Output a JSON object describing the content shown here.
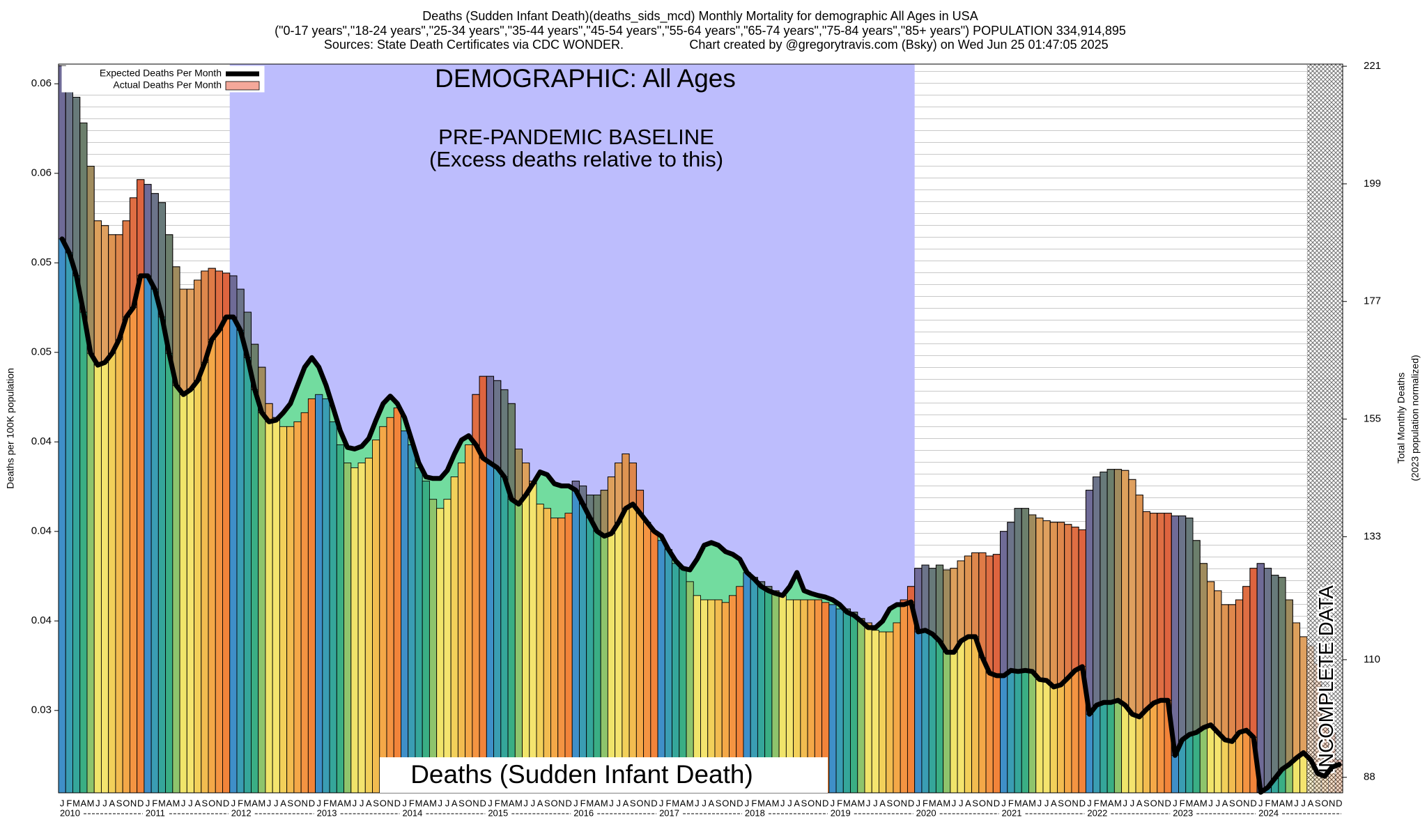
{
  "chart_data": {
    "type": "bar",
    "title": "Deaths (Sudden Infant Death)(deaths_sids_mcd) Monthly Mortality for demographic All Ages in USA",
    "subtitle": "(\"0-17 years\",\"18-24 years\",\"25-34 years\",\"35-44 years\",\"45-54 years\",\"55-64 years\",\"65-74 years\",\"75-84 years\",\"85+ years\") POPULATION 334,914,895",
    "source": "Sources: State Death Certificates via CDC WONDER.",
    "credit": "Chart created by @gregorytravis.com (Bsky) on Wed Jun 25 01:47:05 2025",
    "demographic_label": "DEMOGRAPHIC: All Ages",
    "baseline_label": "PRE-PANDEMIC BASELINE",
    "baseline_note": "(Excess deaths relative to this)",
    "cause_label": "Deaths (Sudden Infant Death)",
    "incomplete_label": "INCOMPLETE DATA",
    "ylabel": "Deaths per 100K population",
    "y2label": "Total Monthly Deaths",
    "y2label_note": "(2023 population normalized)",
    "years": [
      2010,
      2011,
      2012,
      2013,
      2014,
      2015,
      2016,
      2017,
      2018,
      2019,
      2020,
      2021,
      2022,
      2023,
      2024
    ],
    "months": [
      "J",
      "F",
      "M",
      "A",
      "M",
      "J",
      "J",
      "A",
      "S",
      "O",
      "N",
      "D"
    ],
    "month_colors": [
      "#3f8fc8",
      "#3a9db3",
      "#35a69a",
      "#3aae84",
      "#8ec46c",
      "#f0e46a",
      "#f4e46e",
      "#f2d05a",
      "#f2bc50",
      "#f4a848",
      "#f49442",
      "#f2843a"
    ],
    "baseline_years": [
      2012,
      2019
    ],
    "baseline_color": "#bdbdfd",
    "excess_color": "rgba(190,50,70,0.38)",
    "deficit_color": "#72dc9f",
    "incomplete_from": "2024-08",
    "ylim": [
      0.0254,
      0.0661
    ],
    "yticks": [
      {
        "value": 0.065,
        "label": "0.06"
      },
      {
        "value": 0.06,
        "label": "0.06"
      },
      {
        "value": 0.055,
        "label": "0.05"
      },
      0.05,
      {
        "value": 0.045,
        "label": "0.04"
      },
      0.04,
      {
        "value": 0.035,
        "label": "0.04"
      },
      0.03
    ],
    "y2lim": [
      85.1,
      221.4
    ],
    "y2ticks": [
      88,
      110,
      133,
      155,
      177,
      199,
      221
    ],
    "legend": "upper left",
    "series": [
      {
        "name": "Expected Deaths Per Month",
        "color": "#000000",
        "axis": "y2",
        "values": [
          188.7,
          186.1,
          181.8,
          175.0,
          167.3,
          165.1,
          165.6,
          167.3,
          169.9,
          174.1,
          175.9,
          181.8,
          181.8,
          179.3,
          174.1,
          167.3,
          161.3,
          159.6,
          160.5,
          162.2,
          165.6,
          169.9,
          171.6,
          174.1,
          174.1,
          171.6,
          166.5,
          160.5,
          156.2,
          154.5,
          154.8,
          156.2,
          157.9,
          161.3,
          164.7,
          166.5,
          164.7,
          161.3,
          157.1,
          152.8,
          149.7,
          149.4,
          149.9,
          151.4,
          154.8,
          157.9,
          159.3,
          157.9,
          155.3,
          151.1,
          146.8,
          144.2,
          143.9,
          143.9,
          145.4,
          148.5,
          151.1,
          151.9,
          150.2,
          147.7,
          146.8,
          145.9,
          144.2,
          140.0,
          139.1,
          140.8,
          142.9,
          145.1,
          144.6,
          142.9,
          142.5,
          142.5,
          141.7,
          139.1,
          136.5,
          134.0,
          133.1,
          133.6,
          135.7,
          138.3,
          139.1,
          137.4,
          135.7,
          134.0,
          133.1,
          130.6,
          128.5,
          127.1,
          126.8,
          128.8,
          131.4,
          131.9,
          131.4,
          130.2,
          129.7,
          128.8,
          126.3,
          125.1,
          123.7,
          122.9,
          122.4,
          122.0,
          123.7,
          126.3,
          122.9,
          122.4,
          122.0,
          121.7,
          121.2,
          120.3,
          118.9,
          118.3,
          117.2,
          116.0,
          116.0,
          117.2,
          119.5,
          120.3,
          120.3,
          120.8,
          115.2,
          115.5,
          114.8,
          113.5,
          111.4,
          111.4,
          113.5,
          114.3,
          114.3,
          110.4,
          107.5,
          107.0,
          107.0,
          108.0,
          107.8,
          108.0,
          107.8,
          106.3,
          106.1,
          104.9,
          105.3,
          106.6,
          108.0,
          108.7,
          99.8,
          101.5,
          102.0,
          102.0,
          102.4,
          101.5,
          99.8,
          99.3,
          100.7,
          101.9,
          102.4,
          102.4,
          92.1,
          95.0,
          96.0,
          96.4,
          97.3,
          97.8,
          96.4,
          95.0,
          94.7,
          96.4,
          96.8,
          95.5,
          85.2,
          86.1,
          87.8,
          89.5,
          90.4,
          91.6,
          92.6,
          91.3,
          88.7,
          88.2,
          89.9,
          90.4
        ]
      },
      {
        "name": "Actual Deaths Per Month",
        "color": "#f4a89a",
        "axis": "y2",
        "values": [
          221.1,
          219.4,
          215.2,
          210.4,
          202.3,
          192.1,
          191.2,
          189.5,
          189.5,
          192.1,
          196.4,
          199.8,
          198.9,
          197.2,
          195.5,
          189.5,
          183.5,
          179.3,
          179.3,
          181.0,
          182.7,
          183.2,
          182.7,
          182.3,
          181.8,
          179.3,
          175.0,
          169.0,
          164.7,
          157.9,
          155.3,
          153.6,
          153.6,
          154.5,
          156.2,
          158.8,
          159.6,
          158.8,
          154.5,
          150.2,
          146.8,
          145.9,
          146.8,
          147.7,
          151.1,
          153.6,
          155.3,
          157.1,
          152.8,
          150.2,
          145.9,
          143.4,
          140.0,
          138.3,
          140.0,
          144.2,
          146.8,
          150.2,
          159.6,
          163.0,
          163.0,
          162.2,
          160.5,
          157.9,
          149.4,
          146.8,
          143.4,
          139.1,
          138.3,
          136.5,
          136.5,
          137.4,
          143.4,
          142.5,
          140.8,
          140.8,
          141.7,
          144.2,
          146.8,
          148.5,
          146.8,
          141.7,
          135.7,
          134.0,
          132.3,
          130.6,
          128.0,
          127.1,
          124.6,
          122.0,
          121.2,
          121.2,
          121.2,
          120.7,
          122.0,
          123.7,
          126.3,
          125.4,
          124.6,
          123.7,
          122.9,
          122.0,
          121.2,
          121.2,
          121.2,
          121.2,
          121.2,
          120.7,
          120.3,
          119.5,
          119.5,
          118.9,
          117.7,
          116.9,
          115.5,
          115.2,
          115.2,
          116.9,
          121.2,
          123.7,
          127.1,
          127.7,
          127.1,
          127.7,
          126.8,
          127.1,
          128.5,
          129.4,
          130.0,
          130.0,
          129.4,
          129.7,
          134.0,
          135.7,
          138.3,
          138.3,
          137.1,
          136.5,
          136.0,
          135.7,
          135.7,
          135.3,
          134.8,
          134.3,
          141.7,
          144.2,
          145.1,
          145.6,
          145.6,
          145.4,
          143.7,
          140.8,
          137.7,
          137.4,
          137.4,
          137.4,
          136.9,
          136.9,
          136.5,
          132.3,
          128.0,
          124.6,
          122.9,
          120.3,
          120.3,
          121.2,
          123.7,
          127.1,
          128.0,
          127.1,
          125.8,
          125.4,
          121.2,
          116.9,
          114.3,
          112.6,
          109.2,
          103.2,
          96.4,
          91.3
        ]
      }
    ]
  }
}
